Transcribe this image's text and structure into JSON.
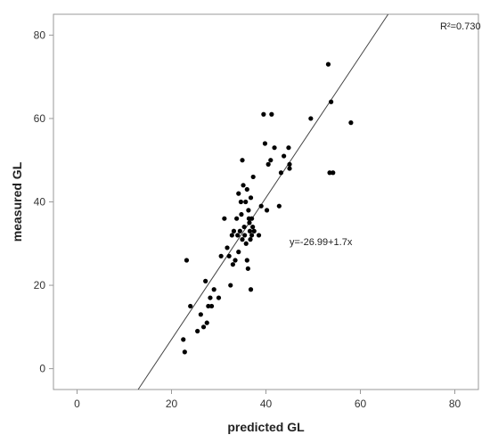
{
  "chart_data": {
    "type": "scatter",
    "xlabel": "predicted GL",
    "ylabel": "measured GL",
    "xlim": [
      -5,
      85
    ],
    "ylim": [
      -5,
      85
    ],
    "xticks": [
      0,
      20,
      40,
      60,
      80
    ],
    "yticks": [
      0,
      20,
      40,
      60,
      80
    ],
    "grid": false,
    "fit_line": {
      "intercept": -26.99,
      "slope": 1.7,
      "label": "y=-26.99+1.7x"
    },
    "r2_label": "R²=0.730",
    "points": [
      {
        "x": 22.5,
        "y": 7
      },
      {
        "x": 22.8,
        "y": 4
      },
      {
        "x": 23.2,
        "y": 26
      },
      {
        "x": 24.0,
        "y": 15
      },
      {
        "x": 25.5,
        "y": 9
      },
      {
        "x": 26.2,
        "y": 13
      },
      {
        "x": 26.8,
        "y": 10
      },
      {
        "x": 27.2,
        "y": 21
      },
      {
        "x": 27.5,
        "y": 11
      },
      {
        "x": 27.8,
        "y": 15
      },
      {
        "x": 28.2,
        "y": 17
      },
      {
        "x": 28.5,
        "y": 15
      },
      {
        "x": 29.0,
        "y": 19
      },
      {
        "x": 30.0,
        "y": 17
      },
      {
        "x": 30.5,
        "y": 27
      },
      {
        "x": 31.2,
        "y": 36
      },
      {
        "x": 31.8,
        "y": 29
      },
      {
        "x": 32.2,
        "y": 27
      },
      {
        "x": 32.5,
        "y": 20
      },
      {
        "x": 32.8,
        "y": 32
      },
      {
        "x": 33.0,
        "y": 25
      },
      {
        "x": 33.2,
        "y": 33
      },
      {
        "x": 33.5,
        "y": 26
      },
      {
        "x": 33.8,
        "y": 36
      },
      {
        "x": 34.0,
        "y": 32
      },
      {
        "x": 34.2,
        "y": 28
      },
      {
        "x": 34.2,
        "y": 42
      },
      {
        "x": 34.5,
        "y": 33
      },
      {
        "x": 34.7,
        "y": 40
      },
      {
        "x": 34.8,
        "y": 37
      },
      {
        "x": 35.0,
        "y": 50
      },
      {
        "x": 35.0,
        "y": 31
      },
      {
        "x": 35.2,
        "y": 44
      },
      {
        "x": 35.4,
        "y": 34
      },
      {
        "x": 35.5,
        "y": 32
      },
      {
        "x": 35.7,
        "y": 40
      },
      {
        "x": 35.8,
        "y": 30
      },
      {
        "x": 36.0,
        "y": 26
      },
      {
        "x": 36.0,
        "y": 43
      },
      {
        "x": 36.2,
        "y": 24
      },
      {
        "x": 36.3,
        "y": 38
      },
      {
        "x": 36.4,
        "y": 36
      },
      {
        "x": 36.5,
        "y": 35
      },
      {
        "x": 36.6,
        "y": 33
      },
      {
        "x": 36.7,
        "y": 31
      },
      {
        "x": 36.8,
        "y": 41
      },
      {
        "x": 36.8,
        "y": 19
      },
      {
        "x": 37.0,
        "y": 36
      },
      {
        "x": 37.0,
        "y": 32
      },
      {
        "x": 37.2,
        "y": 34
      },
      {
        "x": 37.3,
        "y": 46
      },
      {
        "x": 37.5,
        "y": 33
      },
      {
        "x": 38.5,
        "y": 32
      },
      {
        "x": 39.0,
        "y": 39
      },
      {
        "x": 39.5,
        "y": 61
      },
      {
        "x": 39.8,
        "y": 54
      },
      {
        "x": 40.2,
        "y": 38
      },
      {
        "x": 40.5,
        "y": 49
      },
      {
        "x": 41.0,
        "y": 50
      },
      {
        "x": 41.2,
        "y": 61
      },
      {
        "x": 41.8,
        "y": 53
      },
      {
        "x": 42.8,
        "y": 39
      },
      {
        "x": 43.2,
        "y": 47
      },
      {
        "x": 43.8,
        "y": 51
      },
      {
        "x": 44.8,
        "y": 53
      },
      {
        "x": 45.0,
        "y": 48
      },
      {
        "x": 45.0,
        "y": 49
      },
      {
        "x": 49.5,
        "y": 60
      },
      {
        "x": 53.2,
        "y": 73
      },
      {
        "x": 53.5,
        "y": 47
      },
      {
        "x": 53.8,
        "y": 64
      },
      {
        "x": 54.2,
        "y": 47
      },
      {
        "x": 58.0,
        "y": 59
      }
    ]
  }
}
